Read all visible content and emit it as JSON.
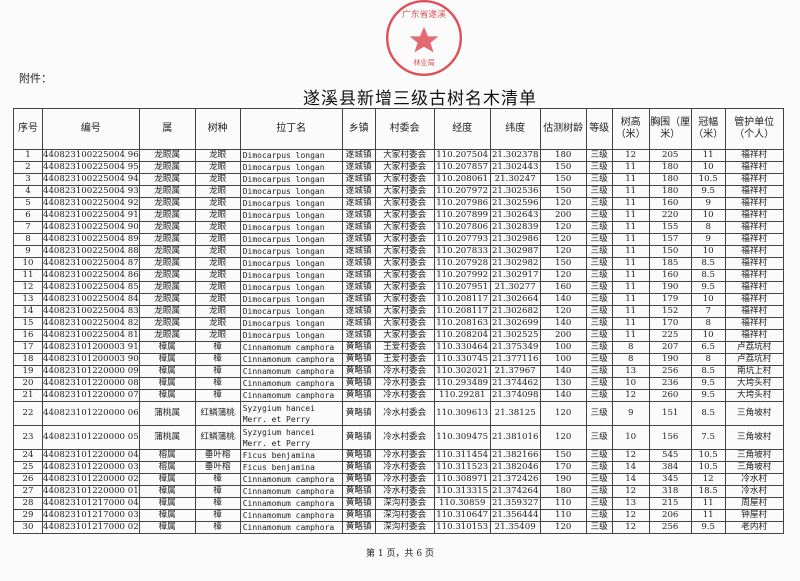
{
  "attachment_label": "附件：",
  "title": "遂溪县新增三级古树名木清单",
  "stamp_color": "#d8262f",
  "stamp_text": "广东省遂溪县 林业局",
  "columns": [
    "序号",
    "编号",
    "属",
    "树种",
    "拉丁名",
    "乡镇",
    "村委会",
    "经度",
    "纬度",
    "估测树龄",
    "等级",
    "树高（米）",
    "胸围（厘米）",
    "冠幅（米）",
    "管护单位（个人）"
  ],
  "rows": [
    [
      "1",
      "440823100225004 96",
      "龙眼属",
      "龙眼",
      "Dimocarpus longan",
      "遂城镇",
      "大家村委会",
      "110.207504",
      "21.302378",
      "180",
      "三级",
      "12",
      "205",
      "11",
      "福祥村"
    ],
    [
      "2",
      "440823100225004 95",
      "龙眼属",
      "龙眼",
      "Dimocarpus longan",
      "遂城镇",
      "大家村委会",
      "110.207857",
      "21.302443",
      "150",
      "三级",
      "11",
      "180",
      "10",
      "福祥村"
    ],
    [
      "3",
      "440823100225004 94",
      "龙眼属",
      "龙眼",
      "Dimocarpus longan",
      "遂城镇",
      "大家村委会",
      "110.208061",
      "21.30247",
      "150",
      "三级",
      "11",
      "180",
      "10.5",
      "福祥村"
    ],
    [
      "4",
      "440823100225004 93",
      "龙眼属",
      "龙眼",
      "Dimocarpus longan",
      "遂城镇",
      "大家村委会",
      "110.207972",
      "21.302536",
      "150",
      "三级",
      "11",
      "180",
      "9.5",
      "福祥村"
    ],
    [
      "5",
      "440823100225004 92",
      "龙眼属",
      "龙眼",
      "Dimocarpus longan",
      "遂城镇",
      "大家村委会",
      "110.207986",
      "21.302596",
      "120",
      "三级",
      "11",
      "160",
      "9",
      "福祥村"
    ],
    [
      "6",
      "440823100225004 91",
      "龙眼属",
      "龙眼",
      "Dimocarpus longan",
      "遂城镇",
      "大家村委会",
      "110.207899",
      "21.302643",
      "200",
      "三级",
      "11",
      "220",
      "10",
      "福祥村"
    ],
    [
      "7",
      "440823100225004 90",
      "龙眼属",
      "龙眼",
      "Dimocarpus longan",
      "遂城镇",
      "大家村委会",
      "110.207806",
      "21.302839",
      "120",
      "三级",
      "11",
      "155",
      "8",
      "福祥村"
    ],
    [
      "8",
      "440823100225004 89",
      "龙眼属",
      "龙眼",
      "Dimocarpus longan",
      "遂城镇",
      "大家村委会",
      "110.207793",
      "21.302986",
      "120",
      "三级",
      "11",
      "157",
      "9",
      "福祥村"
    ],
    [
      "9",
      "440823100225004 88",
      "龙眼属",
      "龙眼",
      "Dimocarpus longan",
      "遂城镇",
      "大家村委会",
      "110.207833",
      "21.302987",
      "120",
      "三级",
      "11",
      "150",
      "10",
      "福祥村"
    ],
    [
      "10",
      "440823100225004 87",
      "龙眼属",
      "龙眼",
      "Dimocarpus longan",
      "遂城镇",
      "大家村委会",
      "110.207928",
      "21.302982",
      "150",
      "三级",
      "11",
      "185",
      "8.5",
      "福祥村"
    ],
    [
      "11",
      "440823100225004 86",
      "龙眼属",
      "龙眼",
      "Dimocarpus longan",
      "遂城镇",
      "大家村委会",
      "110.207992",
      "21.302917",
      "120",
      "三级",
      "11",
      "160",
      "8.5",
      "福祥村"
    ],
    [
      "12",
      "440823100225004 85",
      "龙眼属",
      "龙眼",
      "Dimocarpus longan",
      "遂城镇",
      "大家村委会",
      "110.207951",
      "21.30277",
      "160",
      "三级",
      "11",
      "190",
      "9.5",
      "福祥村"
    ],
    [
      "13",
      "440823100225004 84",
      "龙眼属",
      "龙眼",
      "Dimocarpus longan",
      "遂城镇",
      "大家村委会",
      "110.208117",
      "21.302664",
      "140",
      "三级",
      "11",
      "179",
      "10",
      "福祥村"
    ],
    [
      "14",
      "440823100225004 83",
      "龙眼属",
      "龙眼",
      "Dimocarpus longan",
      "遂城镇",
      "大家村委会",
      "110.208117",
      "21.302682",
      "120",
      "三级",
      "11",
      "152",
      "7",
      "福祥村"
    ],
    [
      "15",
      "440823100225004 82",
      "龙眼属",
      "龙眼",
      "Dimocarpus longan",
      "遂城镇",
      "大家村委会",
      "110.208163",
      "21.302699",
      "140",
      "三级",
      "11",
      "170",
      "8",
      "福祥村"
    ],
    [
      "16",
      "440823100225004 81",
      "龙眼属",
      "龙眼",
      "Dimocarpus longan",
      "遂城镇",
      "大家村委会",
      "110.208204",
      "21.302525",
      "200",
      "三级",
      "11",
      "225",
      "10",
      "福祥村"
    ],
    [
      "17",
      "440823101200003 91",
      "樟属",
      "樟",
      "Cinnamomum camphora",
      "黄略镇",
      "王爱村委会",
      "110.330464",
      "21.375349",
      "100",
      "三级",
      "8",
      "207",
      "6.5",
      "卢荔坑村"
    ],
    [
      "18",
      "440823101200003 90",
      "樟属",
      "樟",
      "Cinnamomum camphora",
      "黄略镇",
      "王爱村委会",
      "110.330745",
      "21.377116",
      "100",
      "三级",
      "8",
      "190",
      "8",
      "卢荔坑村"
    ],
    [
      "19",
      "440823101220000 09",
      "樟属",
      "樟",
      "Cinnamomum camphora",
      "黄略镇",
      "冷水村委会",
      "110.302021",
      "21.37967",
      "140",
      "三级",
      "13",
      "256",
      "8.5",
      "南坑上村"
    ],
    [
      "20",
      "440823101220000 08",
      "樟属",
      "樟",
      "Cinnamomum camphora",
      "黄略镇",
      "冷水村委会",
      "110.293489",
      "21.374462",
      "130",
      "三级",
      "10",
      "236",
      "9.5",
      "大垮头村"
    ],
    [
      "21",
      "440823101220000 07",
      "樟属",
      "樟",
      "Cinnamomum camphora",
      "黄略镇",
      "冷水村委会",
      "110.29281",
      "21.374098",
      "140",
      "三级",
      "12",
      "260",
      "9.5",
      "大垮头村"
    ],
    [
      "22",
      "440823101220000 06",
      "蒲桃属",
      "红鳞蒲桃",
      "Syzygium hancei Merr. et Perry",
      "黄略镇",
      "冷水村委会",
      "110.309613",
      "21.38125",
      "120",
      "三级",
      "9",
      "151",
      "8.5",
      "三角坡村"
    ],
    [
      "23",
      "440823101220000 05",
      "蒲桃属",
      "红鳞蒲桃",
      "Syzygium hancei Merr. et Perry",
      "黄略镇",
      "冷水村委会",
      "110.309475",
      "21.381016",
      "120",
      "三级",
      "10",
      "156",
      "7.5",
      "三角坡村"
    ],
    [
      "24",
      "440823101220000 04",
      "榕属",
      "垂叶榕",
      "Ficus benjamina",
      "黄略镇",
      "冷水村委会",
      "110.311454",
      "21.382166",
      "150",
      "三级",
      "12",
      "545",
      "10.5",
      "三角坡村"
    ],
    [
      "25",
      "440823101220000 03",
      "榕属",
      "垂叶榕",
      "Ficus benjamina",
      "黄略镇",
      "冷水村委会",
      "110.311523",
      "21.382046",
      "170",
      "三级",
      "14",
      "384",
      "10.5",
      "三角坡村"
    ],
    [
      "26",
      "440823101220000 02",
      "樟属",
      "樟",
      "Cinnamomum camphora",
      "黄略镇",
      "冷水村委会",
      "110.308971",
      "21.372426",
      "190",
      "三级",
      "14",
      "345",
      "12",
      "冷水村"
    ],
    [
      "27",
      "440823101220000 01",
      "樟属",
      "樟",
      "Cinnamomum camphora",
      "黄略镇",
      "冷水村委会",
      "110.313315",
      "21.374264",
      "180",
      "三级",
      "12",
      "318",
      "18.5",
      "冷水村"
    ],
    [
      "28",
      "440823101217000 04",
      "樟属",
      "樟",
      "Cinnamomum camphora",
      "黄略镇",
      "深沟村委会",
      "110.30859",
      "21.359327",
      "110",
      "三级",
      "13",
      "215",
      "11",
      "周屋村"
    ],
    [
      "29",
      "440823101217000 03",
      "樟属",
      "樟",
      "Cinnamomum camphora",
      "黄略镇",
      "深沟村委会",
      "110.310647",
      "21.356444",
      "110",
      "三级",
      "12",
      "206",
      "11",
      "钟屋村"
    ],
    [
      "30",
      "440823101217000 02",
      "樟属",
      "樟",
      "Cinnamomum camphora",
      "黄略镇",
      "深沟村委会",
      "110.310153",
      "21.35409",
      "120",
      "三级",
      "12",
      "256",
      "9.5",
      "老内村"
    ]
  ],
  "footer": "第 1 页，共 6 页"
}
